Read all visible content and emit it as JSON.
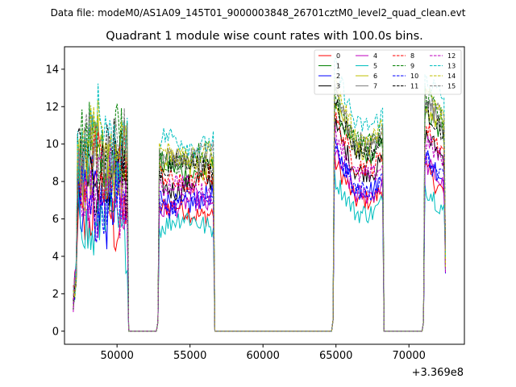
{
  "figure": {
    "suptitle": "Data file: modeM0/AS1A09_145T01_9000003848_26701cztM0_level2_quad_clean.evt"
  },
  "chart_data": {
    "type": "line",
    "title": "Quadrant 1 module wise count rates with 100.0s bins.",
    "xlabel": "",
    "ylabel": "",
    "x_offset_label": "+3.369e8",
    "xlim": [
      46400,
      73800
    ],
    "ylim": [
      -0.7,
      15.2
    ],
    "x_ticks": [
      50000,
      55000,
      60000,
      65000,
      70000
    ],
    "y_ticks": [
      0,
      2,
      4,
      6,
      8,
      10,
      12,
      14
    ],
    "legend_position": "top-right",
    "segments": [
      {
        "start": 47000,
        "end": 50700,
        "gap_end": 52800
      },
      {
        "start": 52800,
        "end": 56600,
        "gap_end": 64800
      },
      {
        "start": 64800,
        "end": 68200,
        "gap_end": 71000
      },
      {
        "start": 71000,
        "end": 72500,
        "gap_end": null
      }
    ],
    "series": [
      {
        "name": "0",
        "color": "#ff0000",
        "dashed": false,
        "level": 7.0
      },
      {
        "name": "1",
        "color": "#008000",
        "dashed": false,
        "level": 9.4
      },
      {
        "name": "2",
        "color": "#0000ff",
        "dashed": false,
        "level": 7.6
      },
      {
        "name": "3",
        "color": "#000000",
        "dashed": false,
        "level": 8.5
      },
      {
        "name": "4",
        "color": "#bf00bf",
        "dashed": false,
        "level": 7.3
      },
      {
        "name": "5",
        "color": "#00bfbf",
        "dashed": false,
        "level": 6.3
      },
      {
        "name": "6",
        "color": "#bfbf00",
        "dashed": false,
        "level": 9.7
      },
      {
        "name": "7",
        "color": "#808080",
        "dashed": false,
        "level": 9.9
      },
      {
        "name": "8",
        "color": "#ff0000",
        "dashed": true,
        "level": 8.8
      },
      {
        "name": "9",
        "color": "#008000",
        "dashed": true,
        "level": 10.1
      },
      {
        "name": "10",
        "color": "#0000ff",
        "dashed": true,
        "level": 7.5
      },
      {
        "name": "11",
        "color": "#000000",
        "dashed": true,
        "level": 9.6
      },
      {
        "name": "12",
        "color": "#bf00bf",
        "dashed": true,
        "level": 8.3
      },
      {
        "name": "13",
        "color": "#00bfbf",
        "dashed": true,
        "level": 11.0
      },
      {
        "name": "14",
        "color": "#bfbf00",
        "dashed": true,
        "level": 10.3
      },
      {
        "name": "15",
        "color": "#808080",
        "dashed": true,
        "level": 10.1
      }
    ]
  }
}
